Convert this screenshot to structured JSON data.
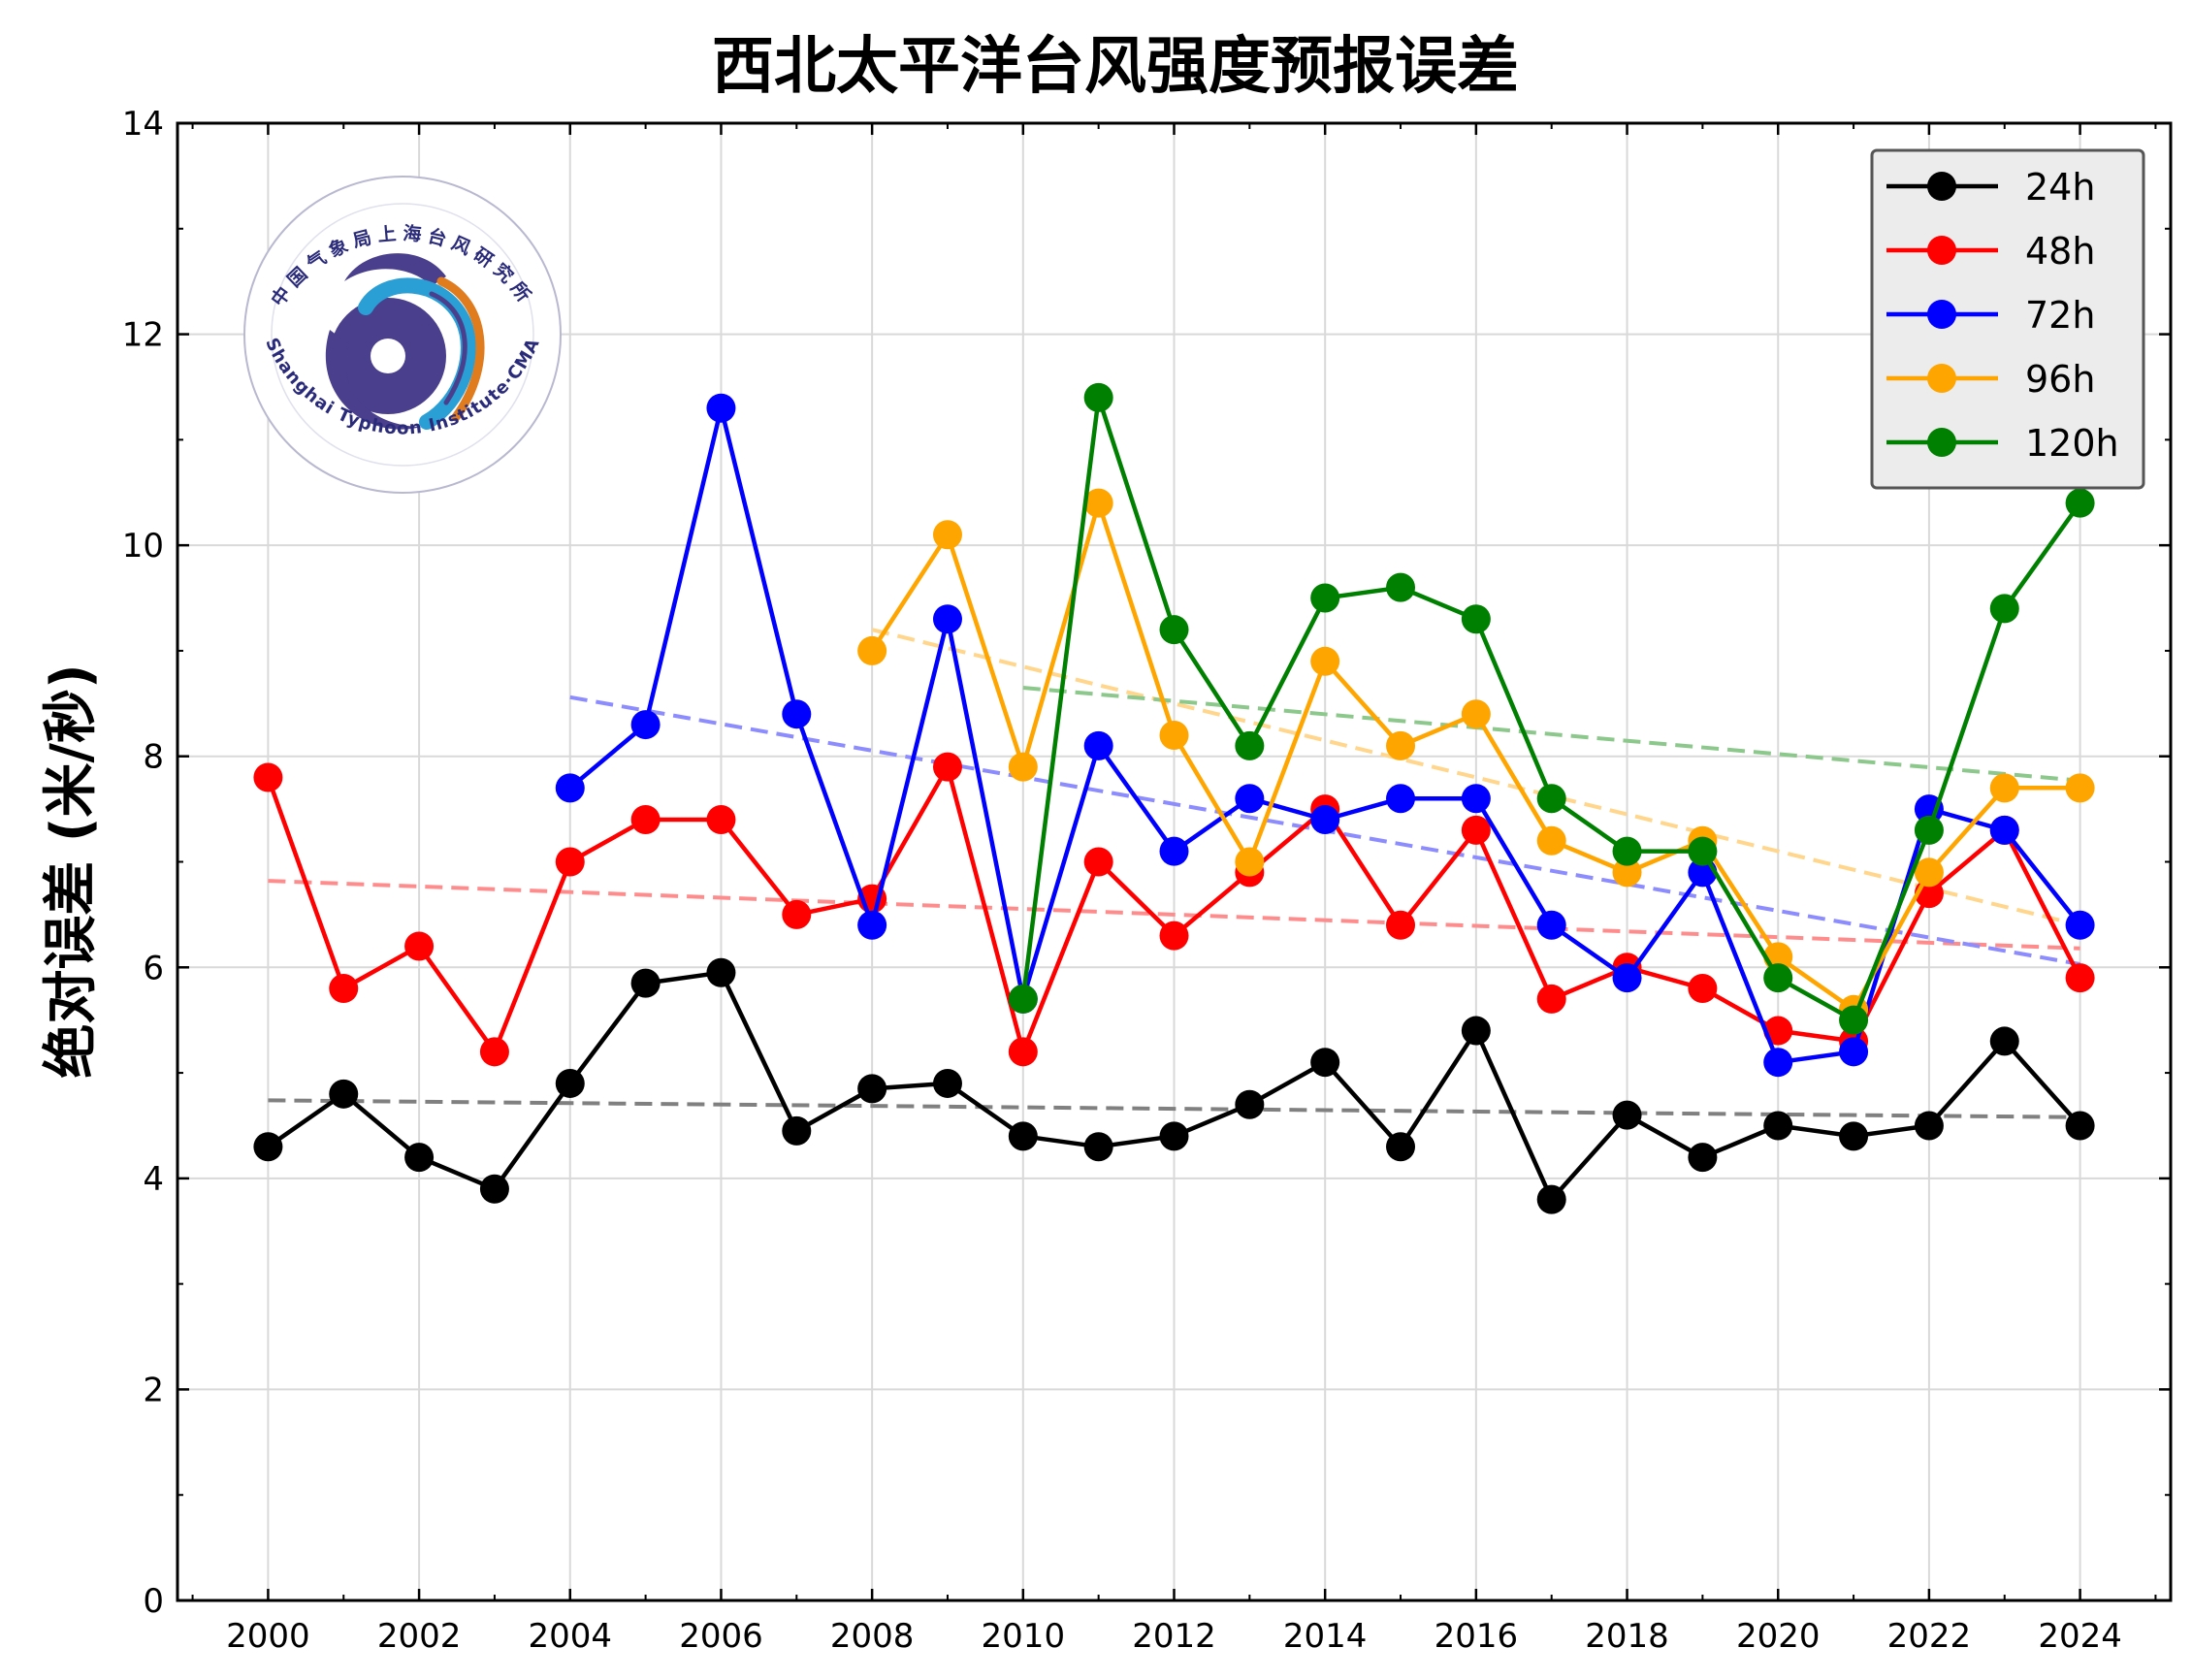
{
  "chart_data": {
    "type": "line",
    "title": "西北太平洋台风强度预报误差",
    "xlabel": "",
    "ylabel": "绝对误差 (米/秒)",
    "xlim": [
      1998.8,
      2025.2
    ],
    "ylim": [
      0,
      14
    ],
    "x_ticks": [
      2000,
      2002,
      2004,
      2006,
      2008,
      2010,
      2012,
      2014,
      2016,
      2018,
      2020,
      2022,
      2024
    ],
    "y_ticks": [
      0,
      2,
      4,
      6,
      8,
      10,
      12,
      14
    ],
    "grid": true,
    "legend_position": "top-right",
    "series": [
      {
        "name": "24h",
        "color": "#000000",
        "trend_color": "#808080",
        "x": [
          2000,
          2001,
          2002,
          2003,
          2004,
          2005,
          2006,
          2007,
          2008,
          2009,
          2010,
          2011,
          2012,
          2013,
          2014,
          2015,
          2016,
          2017,
          2018,
          2019,
          2020,
          2021,
          2022,
          2023,
          2024
        ],
        "values": [
          4.3,
          4.8,
          4.2,
          3.9,
          4.9,
          5.85,
          5.95,
          4.45,
          4.85,
          4.9,
          4.4,
          4.3,
          4.4,
          4.7,
          5.1,
          4.3,
          5.4,
          3.8,
          4.6,
          4.2,
          4.5,
          4.4,
          4.5,
          5.3,
          4.5
        ],
        "trend": {
          "x": [
            2000,
            2024
          ],
          "y": [
            4.74,
            4.58
          ]
        }
      },
      {
        "name": "48h",
        "color": "#ff0000",
        "trend_color": "#ff8c8c",
        "x": [
          2000,
          2001,
          2002,
          2003,
          2004,
          2005,
          2006,
          2007,
          2008,
          2009,
          2010,
          2011,
          2012,
          2013,
          2014,
          2015,
          2016,
          2017,
          2018,
          2019,
          2020,
          2021,
          2022,
          2023,
          2024
        ],
        "values": [
          7.8,
          5.8,
          6.2,
          5.2,
          7.0,
          7.4,
          7.4,
          6.5,
          6.65,
          7.9,
          5.2,
          7.0,
          6.3,
          6.9,
          7.5,
          6.4,
          7.3,
          5.7,
          6.0,
          5.8,
          5.4,
          5.3,
          6.7,
          7.3,
          5.9
        ],
        "trend": {
          "x": [
            2000,
            2024
          ],
          "y": [
            6.82,
            6.18
          ]
        }
      },
      {
        "name": "72h",
        "color": "#0000ff",
        "trend_color": "#8c8cff",
        "x": [
          2004,
          2005,
          2006,
          2007,
          2008,
          2009,
          2010,
          2011,
          2012,
          2013,
          2014,
          2015,
          2016,
          2017,
          2018,
          2019,
          2020,
          2021,
          2022,
          2023,
          2024
        ],
        "values": [
          7.7,
          8.3,
          11.3,
          8.4,
          6.4,
          9.3,
          5.7,
          8.1,
          7.1,
          7.6,
          7.4,
          7.6,
          7.6,
          6.4,
          5.9,
          6.9,
          5.1,
          5.2,
          7.5,
          7.3,
          6.4
        ],
        "trend": {
          "x": [
            2004,
            2024
          ],
          "y": [
            8.56,
            6.03
          ]
        }
      },
      {
        "name": "96h",
        "color": "#ffa500",
        "trend_color": "#ffd68c",
        "x": [
          2008,
          2009,
          2010,
          2011,
          2012,
          2013,
          2014,
          2015,
          2016,
          2017,
          2018,
          2019,
          2020,
          2021,
          2022,
          2023,
          2024
        ],
        "values": [
          9.0,
          10.1,
          7.9,
          10.4,
          8.2,
          7.0,
          8.9,
          8.1,
          8.4,
          7.2,
          6.9,
          7.2,
          6.1,
          5.6,
          6.9,
          7.7,
          7.7
        ],
        "trend": {
          "x": [
            2008,
            2024
          ],
          "y": [
            9.2,
            6.4
          ]
        }
      },
      {
        "name": "120h",
        "color": "#008000",
        "trend_color": "#8cc88c",
        "x": [
          2010,
          2011,
          2012,
          2013,
          2014,
          2015,
          2016,
          2017,
          2018,
          2019,
          2020,
          2021,
          2022,
          2023,
          2024
        ],
        "values": [
          5.7,
          11.4,
          9.2,
          8.1,
          9.5,
          9.6,
          9.3,
          7.6,
          7.1,
          7.1,
          5.9,
          5.5,
          7.3,
          9.4,
          10.4
        ],
        "trend": {
          "x": [
            2010,
            2024
          ],
          "y": [
            8.65,
            7.77
          ]
        }
      }
    ]
  },
  "logo": {
    "name_cn": "中国气象局上海台风研究所",
    "name_en": "Shanghai Typhoon Institute·CMA"
  }
}
